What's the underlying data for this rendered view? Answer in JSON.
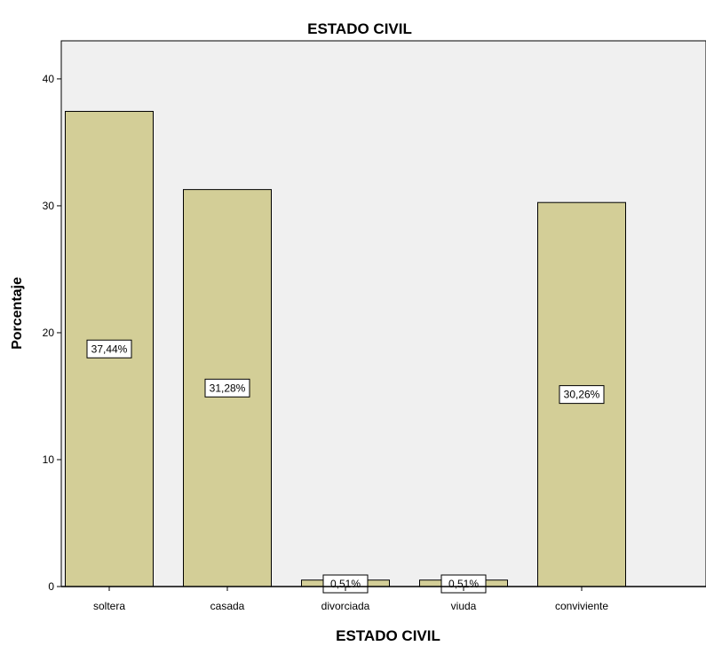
{
  "chart_data": {
    "type": "bar",
    "title": "ESTADO CIVIL",
    "xlabel": "ESTADO CIVIL",
    "ylabel": "Porcentaje",
    "categories": [
      "soltera",
      "casada",
      "divorciada",
      "viuda",
      "conviviente"
    ],
    "values": [
      37.44,
      31.28,
      0.51,
      0.51,
      30.26
    ],
    "data_labels": [
      "37,44%",
      "31,28%",
      "0,51%",
      "0,51%",
      "30,26%"
    ],
    "y_ticks": [
      "0",
      "10",
      "20",
      "30",
      "40"
    ],
    "ylim": [
      0,
      43
    ],
    "grid": false,
    "colors": {
      "plot_background": "#f0f0f0",
      "bar_fill": "#d3ce97",
      "bar_stroke": "#000000"
    }
  }
}
